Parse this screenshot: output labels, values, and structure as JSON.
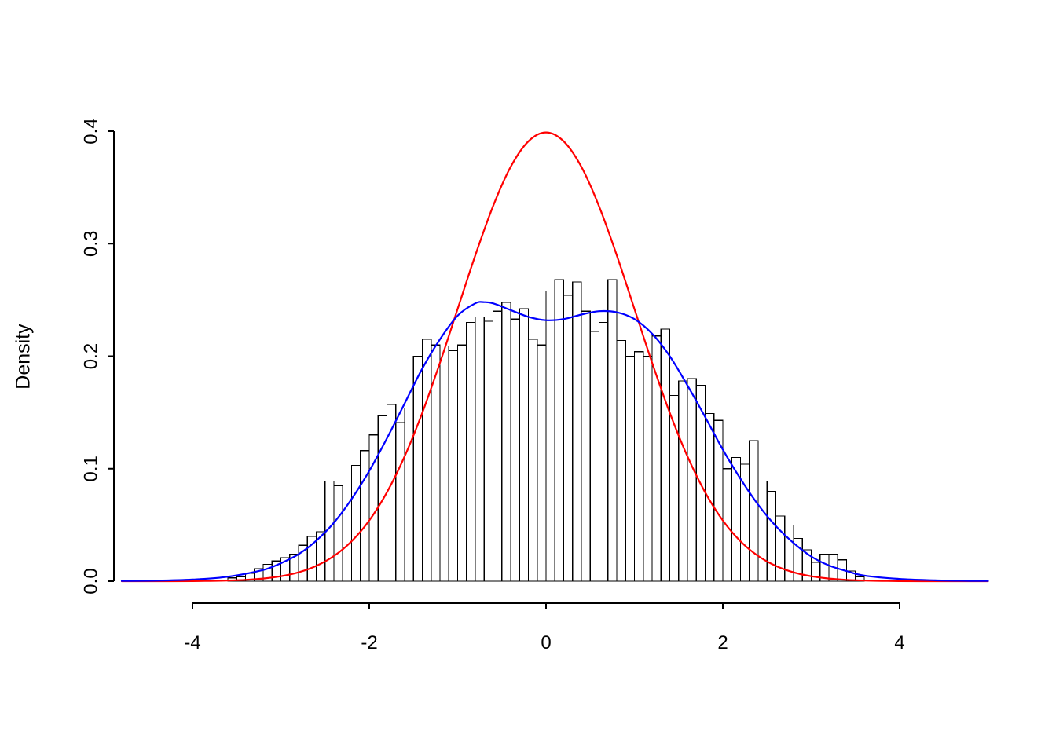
{
  "chart_data": {
    "type": "bar",
    "subtype": "histogram-with-density-overlays",
    "title": "",
    "xlabel": "",
    "ylabel": "Density",
    "xlim": [
      -4.8,
      5.0
    ],
    "ylim": [
      0,
      0.4
    ],
    "grid": false,
    "legend": "none",
    "x_ticks": {
      "values": [
        -4,
        -2,
        0,
        2,
        4
      ],
      "labels": [
        "-4",
        "-2",
        "0",
        "2",
        "4"
      ]
    },
    "y_ticks": {
      "values": [
        0,
        0.1,
        0.2,
        0.3,
        0.4
      ],
      "labels": [
        "0.0",
        "0.1",
        "0.2",
        "0.3",
        "0.4"
      ]
    },
    "histogram": {
      "bin_start": -3.6,
      "bin_width": 0.1,
      "bar_fill": "#ffffff",
      "bar_stroke": "#000000",
      "densities": [
        0.003,
        0.004,
        0.007,
        0.011,
        0.015,
        0.018,
        0.021,
        0.024,
        0.032,
        0.04,
        0.044,
        0.089,
        0.085,
        0.066,
        0.103,
        0.116,
        0.13,
        0.147,
        0.157,
        0.141,
        0.154,
        0.2,
        0.215,
        0.21,
        0.209,
        0.205,
        0.21,
        0.23,
        0.235,
        0.231,
        0.24,
        0.248,
        0.233,
        0.242,
        0.215,
        0.21,
        0.258,
        0.268,
        0.254,
        0.266,
        0.24,
        0.222,
        0.23,
        0.268,
        0.214,
        0.2,
        0.204,
        0.2,
        0.218,
        0.224,
        0.165,
        0.178,
        0.18,
        0.174,
        0.149,
        0.143,
        0.1,
        0.11,
        0.104,
        0.125,
        0.089,
        0.08,
        0.058,
        0.05,
        0.038,
        0.028,
        0.017,
        0.024,
        0.024,
        0.019,
        0.009,
        0.004
      ]
    },
    "curves": [
      {
        "name": "standard-normal-density",
        "color": "#ff0000",
        "points": [
          [
            -4.8,
            0
          ],
          [
            -4.4,
            0
          ],
          [
            -4.0,
            0.0001
          ],
          [
            -3.8,
            0.0003
          ],
          [
            -3.6,
            0.0006
          ],
          [
            -3.4,
            0.0012
          ],
          [
            -3.2,
            0.0024
          ],
          [
            -3.0,
            0.0044
          ],
          [
            -2.8,
            0.0079
          ],
          [
            -2.6,
            0.0136
          ],
          [
            -2.4,
            0.0224
          ],
          [
            -2.2,
            0.0355
          ],
          [
            -2.0,
            0.054
          ],
          [
            -1.8,
            0.079
          ],
          [
            -1.6,
            0.1109
          ],
          [
            -1.4,
            0.1497
          ],
          [
            -1.2,
            0.1942
          ],
          [
            -1.0,
            0.242
          ],
          [
            -0.8,
            0.2897
          ],
          [
            -0.6,
            0.3332
          ],
          [
            -0.4,
            0.3683
          ],
          [
            -0.2,
            0.391
          ],
          [
            0,
            0.3989
          ],
          [
            0.2,
            0.391
          ],
          [
            0.4,
            0.3683
          ],
          [
            0.6,
            0.3332
          ],
          [
            0.8,
            0.2897
          ],
          [
            1.0,
            0.242
          ],
          [
            1.2,
            0.1942
          ],
          [
            1.4,
            0.1497
          ],
          [
            1.6,
            0.1109
          ],
          [
            1.8,
            0.079
          ],
          [
            2.0,
            0.054
          ],
          [
            2.2,
            0.0355
          ],
          [
            2.4,
            0.0224
          ],
          [
            2.6,
            0.0136
          ],
          [
            2.8,
            0.0079
          ],
          [
            3.0,
            0.0044
          ],
          [
            3.2,
            0.0024
          ],
          [
            3.4,
            0.0012
          ],
          [
            3.6,
            0.0006
          ],
          [
            3.8,
            0.0003
          ],
          [
            4.0,
            0.0001
          ],
          [
            4.4,
            0
          ],
          [
            4.8,
            0
          ],
          [
            5.0,
            0
          ]
        ]
      },
      {
        "name": "kernel-density-estimate",
        "color": "#0000ff",
        "points": [
          [
            -4.8,
            0.0002
          ],
          [
            -4.4,
            0.0005
          ],
          [
            -4.0,
            0.0015
          ],
          [
            -3.6,
            0.004
          ],
          [
            -3.2,
            0.01
          ],
          [
            -3.0,
            0.016
          ],
          [
            -2.8,
            0.024
          ],
          [
            -2.6,
            0.036
          ],
          [
            -2.4,
            0.052
          ],
          [
            -2.2,
            0.073
          ],
          [
            -2.0,
            0.098
          ],
          [
            -1.8,
            0.127
          ],
          [
            -1.6,
            0.158
          ],
          [
            -1.4,
            0.189
          ],
          [
            -1.2,
            0.215
          ],
          [
            -1.0,
            0.236
          ],
          [
            -0.8,
            0.247
          ],
          [
            -0.7,
            0.248
          ],
          [
            -0.6,
            0.247
          ],
          [
            -0.4,
            0.241
          ],
          [
            -0.2,
            0.235
          ],
          [
            0,
            0.232
          ],
          [
            0.2,
            0.233
          ],
          [
            0.4,
            0.237
          ],
          [
            0.6,
            0.24
          ],
          [
            0.8,
            0.239
          ],
          [
            1.0,
            0.233
          ],
          [
            1.2,
            0.22
          ],
          [
            1.4,
            0.2
          ],
          [
            1.6,
            0.174
          ],
          [
            1.8,
            0.146
          ],
          [
            2.0,
            0.117
          ],
          [
            2.2,
            0.091
          ],
          [
            2.4,
            0.068
          ],
          [
            2.6,
            0.049
          ],
          [
            2.8,
            0.034
          ],
          [
            3.0,
            0.022
          ],
          [
            3.2,
            0.014
          ],
          [
            3.4,
            0.009
          ],
          [
            3.6,
            0.005
          ],
          [
            4.0,
            0.002
          ],
          [
            4.4,
            0.0008
          ],
          [
            4.8,
            0.0003
          ],
          [
            5.0,
            0.0002
          ]
        ]
      }
    ]
  }
}
